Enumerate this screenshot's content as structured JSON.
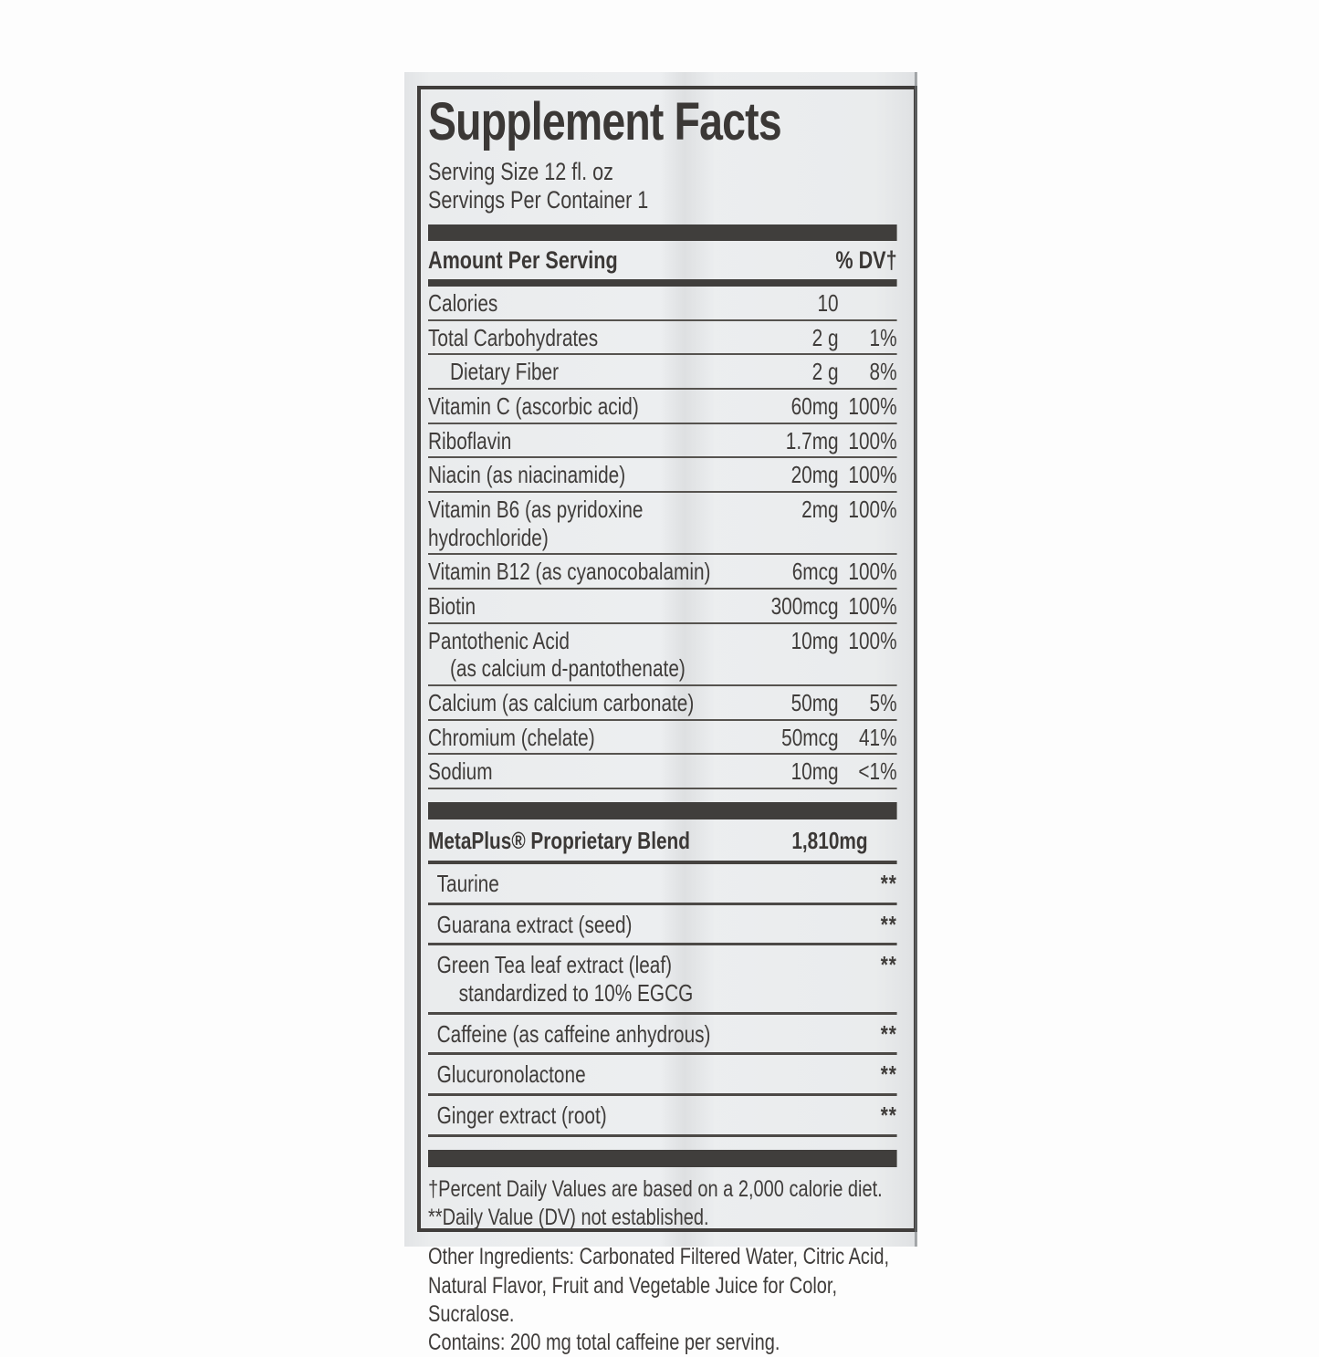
{
  "label": {
    "title": "Supplement Facts",
    "serving_size": "Serving Size 12 fl. oz",
    "servings_per_container": "Servings Per Container 1",
    "amount_header": "Amount Per Serving",
    "dv_header": "% DV†",
    "nutrients": [
      {
        "name": "Calories",
        "amount": "10",
        "dv": ""
      },
      {
        "name": "Total Carbohydrates",
        "amount": "2 g",
        "dv": "1%"
      },
      {
        "name": "Dietary Fiber",
        "amount": "2 g",
        "dv": "8%"
      },
      {
        "name": "Vitamin C (ascorbic acid)",
        "amount": "60mg",
        "dv": "100%"
      },
      {
        "name": "Riboflavin",
        "amount": "1.7mg",
        "dv": "100%"
      },
      {
        "name": "Niacin (as niacinamide)",
        "amount": "20mg",
        "dv": "100%"
      },
      {
        "name": "Vitamin B6 (as pyridoxine hydrochloride)",
        "amount": "2mg",
        "dv": "100%"
      },
      {
        "name": "Vitamin B12 (as cyanocobalamin)",
        "amount": "6mcg",
        "dv": "100%"
      },
      {
        "name": "Biotin",
        "amount": "300mcg",
        "dv": "100%"
      },
      {
        "name": "Pantothenic Acid",
        "subname": "(as calcium d-pantothenate)",
        "amount": "10mg",
        "dv": "100%"
      },
      {
        "name": "Calcium (as calcium carbonate)",
        "amount": "50mg",
        "dv": "5%"
      },
      {
        "name": "Chromium (chelate)",
        "amount": "50mcg",
        "dv": "41%"
      },
      {
        "name": "Sodium",
        "amount": "10mg",
        "dv": "<1%"
      }
    ],
    "blend": {
      "name": "MetaPlus® Proprietary Blend",
      "amount": "1,810mg",
      "ingredients": [
        {
          "name": "Taurine",
          "dv": "**"
        },
        {
          "name": "Guarana extract (seed)",
          "dv": "**"
        },
        {
          "name": "Green Tea leaf extract (leaf)",
          "subname": "standardized to 10% EGCG",
          "dv": "**"
        },
        {
          "name": "Caffeine (as caffeine anhydrous)",
          "dv": "**"
        },
        {
          "name": "Glucuronolactone",
          "dv": "**"
        },
        {
          "name": "Ginger extract (root)",
          "dv": "**"
        }
      ]
    },
    "footnote_dv": "†Percent Daily Values are based on a 2,000 calorie diet.",
    "footnote_est": "**Daily Value (DV) not established.",
    "other_ingredients": "Other Ingredients: Carbonated Filtered Water, Citric Acid, Natural Flavor, Fruit and Vegetable Juice for Color, Sucralose.",
    "contains": "Contains: 200 mg total caffeine per serving.",
    "colors": {
      "text": "#3f3c3a",
      "label_bg": "#eceef0",
      "bar": "#403e3c"
    }
  }
}
